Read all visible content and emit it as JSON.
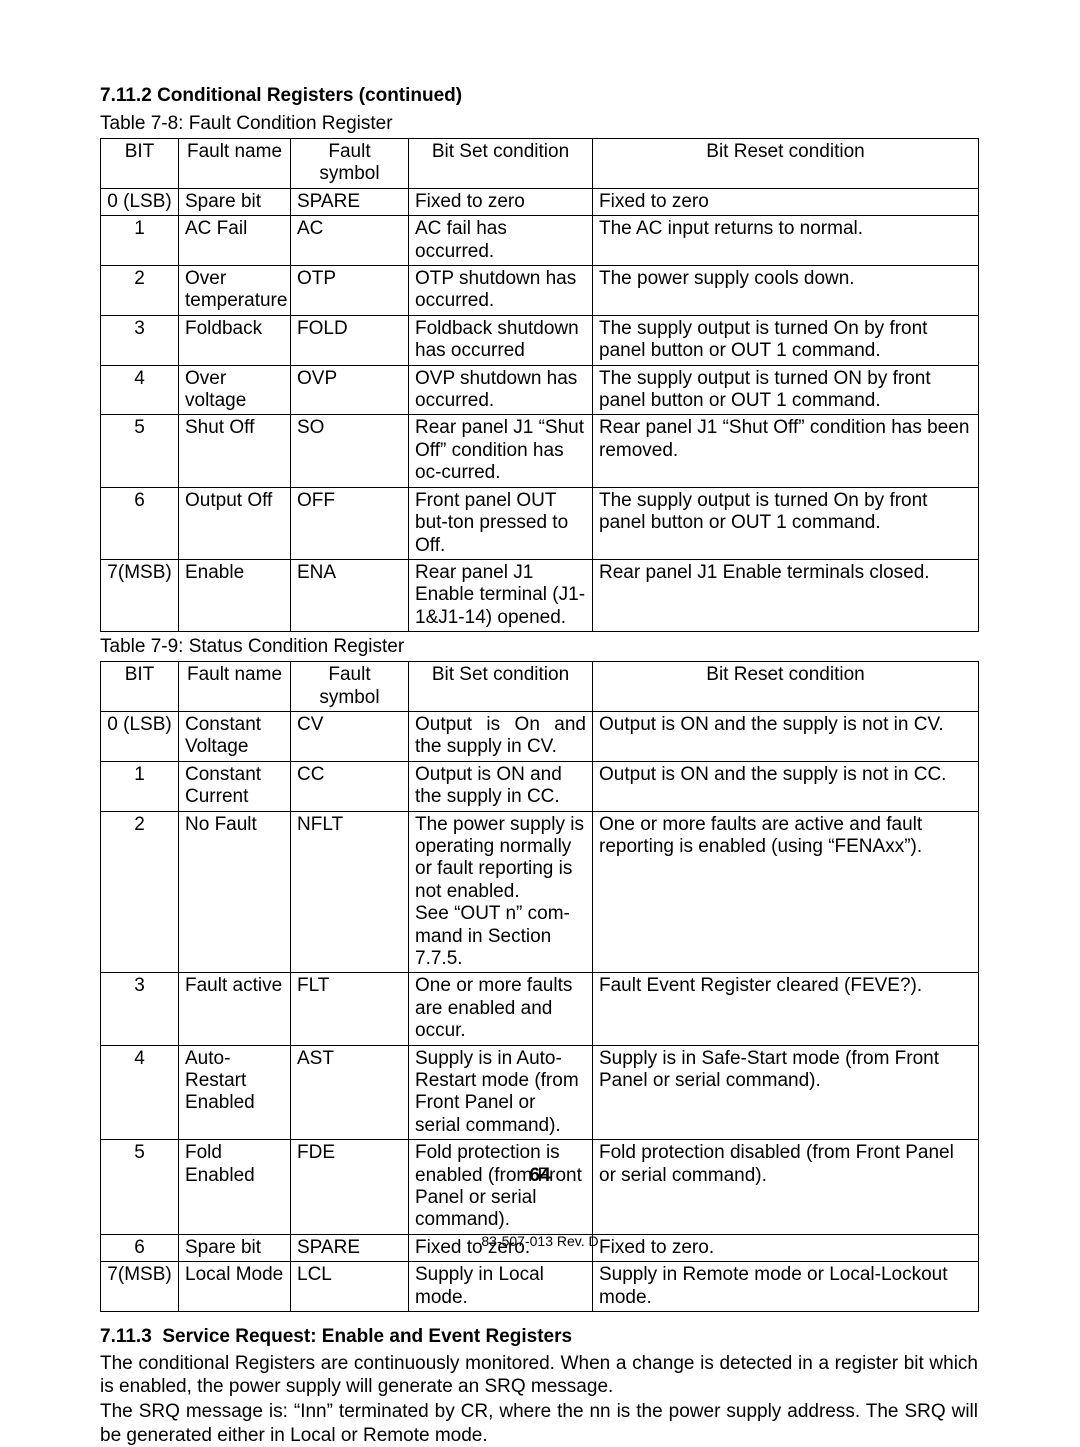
{
  "section1": {
    "number": "7.11.2",
    "title": "Conditional Registers (continued)"
  },
  "table1": {
    "caption": "Table 7-8: Fault Condition Register",
    "headers": [
      "BIT",
      "Fault name",
      "Fault symbol",
      "Bit Set condition",
      "Bit Reset condition"
    ],
    "rows": [
      [
        "0 (LSB)",
        "Spare bit",
        "SPARE",
        "Fixed to zero",
        "Fixed to zero"
      ],
      [
        "1",
        "AC Fail",
        "AC",
        "AC fail has occurred.",
        "The AC input returns to normal."
      ],
      [
        "2",
        "Over temperature",
        "OTP",
        "OTP shutdown has occurred.",
        "The power supply cools down."
      ],
      [
        "3",
        "Foldback",
        "FOLD",
        "Foldback shutdown has occurred",
        "The supply output is turned On by front panel button or OUT 1 command."
      ],
      [
        "4",
        "Over voltage",
        "OVP",
        "OVP shutdown has occurred.",
        "The supply output is turned ON by front panel button or OUT 1 command."
      ],
      [
        "5",
        "Shut Off",
        "SO",
        "Rear panel J1 “Shut Off” condition has oc-curred.",
        "Rear panel J1 “Shut Off” condition has been removed."
      ],
      [
        "6",
        "Output Off",
        "OFF",
        "Front panel OUT but-ton pressed to Off.",
        "The supply output is turned On by front panel button or OUT 1 command."
      ],
      [
        "7(MSB)",
        "Enable",
        "ENA",
        "Rear panel J1 Enable terminal (J1-1&J1-14) opened.",
        "Rear panel J1 Enable terminals closed."
      ]
    ]
  },
  "table2": {
    "caption": "Table 7-9: Status Condition Register",
    "headers": [
      "BIT",
      "Fault name",
      "Fault symbol",
      "Bit Set condition",
      "Bit Reset condition"
    ],
    "rows": [
      [
        "0 (LSB)",
        "Constant Voltage",
        "CV",
        "Output is On and the supply in CV.",
        "Output is ON and the supply is not in CV."
      ],
      [
        "1",
        "Constant Current",
        "CC",
        "Output is ON and the supply in CC.",
        "Output is ON and the supply is not in CC."
      ],
      [
        "2",
        "No Fault",
        "NFLT",
        "The power supply is operating normally or fault reporting is not enabled.\nSee “OUT n” com-mand in Section 7.7.5.",
        "One or more faults are active and fault reporting is enabled (using “FENAxx”)."
      ],
      [
        "3",
        "Fault active",
        "FLT",
        "One or more faults are enabled and occur.",
        "Fault Event Register cleared (FEVE?)."
      ],
      [
        "4",
        "Auto-Restart Enabled",
        "AST",
        "Supply is in Auto-Restart mode (from Front Panel or serial command).",
        "Supply is in Safe-Start mode (from Front Panel or serial command)."
      ],
      [
        "5",
        "Fold Enabled",
        "FDE",
        "Fold protection is enabled (from Front Panel or serial command).",
        "Fold protection disabled (from Front Panel or serial command)."
      ],
      [
        "6",
        "Spare bit",
        "SPARE",
        "Fixed to zero.",
        "Fixed to zero."
      ],
      [
        "7(MSB)",
        "Local Mode",
        "LCL",
        "Supply in Local mode.",
        "Supply in Remote mode or Local-Lockout mode."
      ]
    ]
  },
  "section2": {
    "number": "7.11.3",
    "title": "Service Request: Enable and Event Registers"
  },
  "para1": "The conditional Registers are continuously monitored. When a change is detected in a register bit which is enabled, the power supply will generate an SRQ message.",
  "para2": "The SRQ message is: “Inn” terminated by CR, where the nn is the power supply address. The SRQ will be generated either in Local or Remote mode.",
  "page_number": "64",
  "footer": "83-507-013 Rev. D"
}
